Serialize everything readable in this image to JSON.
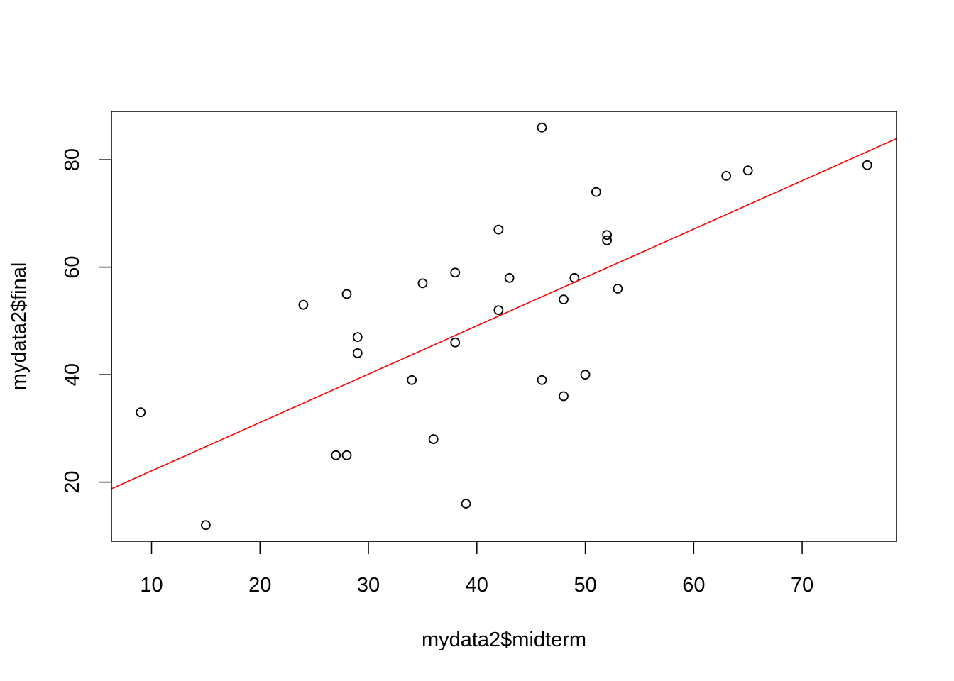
{
  "chart_data": {
    "type": "scatter",
    "title": "",
    "xlabel": "mydata2$midterm",
    "ylabel": "mydata2$final",
    "xlim": [
      6.3,
      78.7
    ],
    "ylim": [
      9.0,
      89.0
    ],
    "x_ticks": [
      10,
      20,
      30,
      40,
      50,
      60,
      70
    ],
    "y_ticks": [
      20,
      40,
      60,
      80
    ],
    "x_tick_labels": [
      "10",
      "20",
      "30",
      "40",
      "50",
      "60",
      "70"
    ],
    "y_tick_labels": [
      "20",
      "40",
      "60",
      "80"
    ],
    "grid": false,
    "points": [
      {
        "x": 9,
        "y": 33
      },
      {
        "x": 15,
        "y": 12
      },
      {
        "x": 24,
        "y": 53
      },
      {
        "x": 27,
        "y": 25
      },
      {
        "x": 28,
        "y": 25
      },
      {
        "x": 28,
        "y": 55
      },
      {
        "x": 29,
        "y": 47
      },
      {
        "x": 29,
        "y": 44
      },
      {
        "x": 34,
        "y": 39
      },
      {
        "x": 35,
        "y": 57
      },
      {
        "x": 36,
        "y": 28
      },
      {
        "x": 38,
        "y": 59
      },
      {
        "x": 38,
        "y": 46
      },
      {
        "x": 39,
        "y": 16
      },
      {
        "x": 42,
        "y": 67
      },
      {
        "x": 42,
        "y": 52
      },
      {
        "x": 43,
        "y": 58
      },
      {
        "x": 46,
        "y": 86
      },
      {
        "x": 46,
        "y": 39
      },
      {
        "x": 48,
        "y": 54
      },
      {
        "x": 48,
        "y": 36
      },
      {
        "x": 49,
        "y": 58
      },
      {
        "x": 50,
        "y": 40
      },
      {
        "x": 51,
        "y": 74
      },
      {
        "x": 52,
        "y": 66
      },
      {
        "x": 52,
        "y": 65
      },
      {
        "x": 53,
        "y": 56
      },
      {
        "x": 63,
        "y": 77
      },
      {
        "x": 65,
        "y": 78
      },
      {
        "x": 76,
        "y": 79
      }
    ],
    "regression_line": {
      "intercept": 13.1,
      "slope": 0.9,
      "color": "#ff0000"
    },
    "point_color": "#000000"
  }
}
